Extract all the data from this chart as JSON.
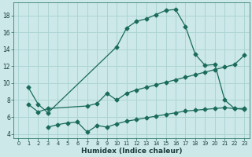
{
  "xlabel": "Humidex (Indice chaleur)",
  "bg_color": "#cce8e8",
  "grid_color": "#add4d4",
  "line_color": "#1a6b5a",
  "line1_x": [
    1,
    2,
    3,
    10,
    11,
    12,
    13,
    14,
    15,
    16,
    17,
    18,
    19,
    20,
    21,
    22,
    23
  ],
  "line1_y": [
    9.5,
    7.5,
    6.5,
    14.3,
    16.5,
    17.3,
    17.6,
    18.1,
    18.6,
    18.7,
    16.7,
    13.4,
    12.1,
    12.2,
    8.0,
    7.0,
    7.0
  ],
  "line2_x": [
    1,
    2,
    3,
    7,
    8,
    9,
    10,
    11,
    12,
    13,
    14,
    15,
    16,
    17,
    18,
    19,
    20,
    21,
    22,
    23
  ],
  "line2_y": [
    7.5,
    6.6,
    7.0,
    7.3,
    7.6,
    8.8,
    8.0,
    8.8,
    9.2,
    9.5,
    9.8,
    10.1,
    10.4,
    10.7,
    11.0,
    11.3,
    11.6,
    11.9,
    12.2,
    13.3
  ],
  "line3_x": [
    3,
    4,
    5,
    6,
    7,
    8,
    9,
    10,
    11,
    12,
    13,
    14,
    15,
    16,
    17,
    18,
    19,
    20,
    21,
    22,
    23
  ],
  "line3_y": [
    4.8,
    5.1,
    5.3,
    5.4,
    4.2,
    5.0,
    4.8,
    5.2,
    5.5,
    5.7,
    5.9,
    6.1,
    6.3,
    6.5,
    6.7,
    6.8,
    6.9,
    7.0,
    7.1,
    7.0,
    6.9
  ],
  "xlim": [
    -0.5,
    23.5
  ],
  "ylim": [
    3.5,
    19.5
  ],
  "yticks": [
    4,
    6,
    8,
    10,
    12,
    14,
    16,
    18
  ],
  "xticks": [
    0,
    1,
    2,
    3,
    4,
    5,
    6,
    7,
    8,
    9,
    10,
    11,
    12,
    13,
    14,
    15,
    16,
    17,
    18,
    19,
    20,
    21,
    22,
    23
  ]
}
